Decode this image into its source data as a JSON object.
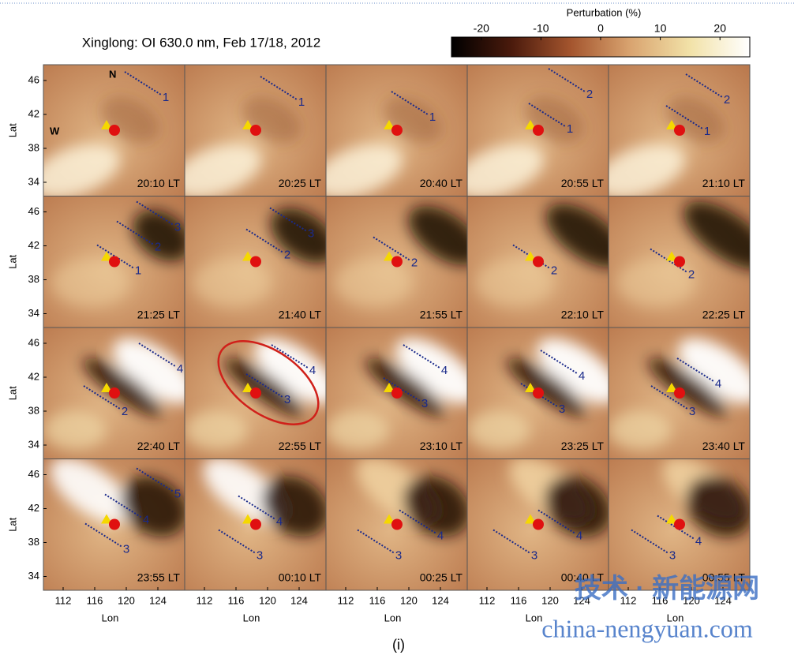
{
  "title": "Xinglong: OI 630.0 nm, Feb 17/18, 2012",
  "colorbar": {
    "label": "Perturbation (%)",
    "range": [
      -25,
      25
    ],
    "ticks": [
      -20,
      -10,
      0,
      10,
      20
    ]
  },
  "compass": {
    "north": "N",
    "west": "W"
  },
  "lat_label": "Lat",
  "lat_ticks": [
    46,
    42,
    38,
    34
  ],
  "lon_label": "Lon",
  "lon_ticks": [
    112,
    116,
    120,
    124
  ],
  "panels": [
    {
      "time": "20:10 LT",
      "fronts": [
        "1"
      ]
    },
    {
      "time": "20:25 LT",
      "fronts": [
        "1"
      ]
    },
    {
      "time": "20:40 LT",
      "fronts": [
        "1"
      ]
    },
    {
      "time": "20:55 LT",
      "fronts": [
        "2",
        "1"
      ]
    },
    {
      "time": "21:10 LT",
      "fronts": [
        "2",
        "1"
      ]
    },
    {
      "time": "21:25 LT",
      "fronts": [
        "3",
        "2",
        "1"
      ]
    },
    {
      "time": "21:40 LT",
      "fronts": [
        "3",
        "2"
      ]
    },
    {
      "time": "21:55 LT",
      "fronts": [
        "2"
      ]
    },
    {
      "time": "22:10 LT",
      "fronts": [
        "2"
      ]
    },
    {
      "time": "22:25 LT",
      "fronts": [
        "2"
      ]
    },
    {
      "time": "22:40 LT",
      "fronts": [
        "4",
        "2"
      ]
    },
    {
      "time": "22:55 LT",
      "fronts": [
        "4",
        "3"
      ]
    },
    {
      "time": "23:10 LT",
      "fronts": [
        "4",
        "3"
      ]
    },
    {
      "time": "23:25 LT",
      "fronts": [
        "4",
        "3"
      ]
    },
    {
      "time": "23:40 LT",
      "fronts": [
        "4",
        "3"
      ]
    },
    {
      "time": "23:55 LT",
      "fronts": [
        "5",
        "4",
        "3"
      ]
    },
    {
      "time": "00:10 LT",
      "fronts": [
        "4",
        "3"
      ]
    },
    {
      "time": "00:25 LT",
      "fronts": [
        "4",
        "3"
      ]
    },
    {
      "time": "00:40 LT",
      "fronts": [
        "4",
        "3"
      ]
    },
    {
      "time": "00:55 LT",
      "fronts": [
        "4",
        "3"
      ]
    }
  ],
  "caption": "(i)",
  "watermark": {
    "cn": "技术 · 新能源网",
    "url": "china-nengyuan.com"
  }
}
